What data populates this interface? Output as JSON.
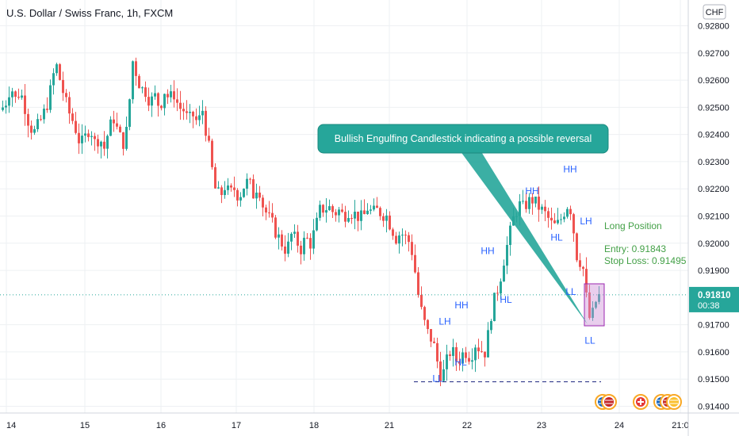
{
  "title": "U.S. Dollar / Swiss Franc, 1h, FXCM",
  "currency": "CHF",
  "callout": "Bullish Engulfing Candlestick indicating a possible reversal",
  "position": {
    "label": "Long Position",
    "entry_label": "Entry: 0.91843",
    "stop_label": "Stop Loss: 0.91495"
  },
  "price_tag": {
    "price": "0.91810",
    "countdown": "00:38"
  },
  "colors": {
    "up": "#26a69a",
    "down": "#ef5350",
    "accent": "#2962ff",
    "green": "#43a047",
    "callout": "#26a69a"
  },
  "chart_data": {
    "type": "candlestick",
    "y_unit": "CHF",
    "ylim": [
      0.914,
      0.928
    ],
    "y_ticks": [
      "0.92800",
      "0.92700",
      "0.92600",
      "0.92500",
      "0.92400",
      "0.92300",
      "0.92200",
      "0.92100",
      "0.92000",
      "0.91900",
      "0.91700",
      "0.91600",
      "0.91500",
      "0.91400"
    ],
    "x_ticks": [
      "14",
      "15",
      "16",
      "17",
      "18",
      "21",
      "22",
      "23",
      "24",
      "21:0"
    ],
    "current_price": 0.9181,
    "support_level": 0.9149,
    "close_path": [
      [
        0,
        0.9249
      ],
      [
        6,
        0.9252
      ],
      [
        12,
        0.9258
      ],
      [
        18,
        0.9253
      ],
      [
        24,
        0.9256
      ],
      [
        30,
        0.925
      ],
      [
        36,
        0.9243
      ],
      [
        42,
        0.9241
      ],
      [
        48,
        0.9244
      ],
      [
        54,
        0.9248
      ],
      [
        60,
        0.9253
      ],
      [
        66,
        0.9262
      ],
      [
        70,
        0.9265
      ],
      [
        76,
        0.9258
      ],
      [
        84,
        0.9249
      ],
      [
        92,
        0.9244
      ],
      [
        100,
        0.9236
      ],
      [
        106,
        0.9239
      ],
      [
        112,
        0.9243
      ],
      [
        118,
        0.9237
      ],
      [
        124,
        0.9239
      ],
      [
        130,
        0.9235
      ],
      [
        136,
        0.9242
      ],
      [
        142,
        0.9246
      ],
      [
        148,
        0.924
      ],
      [
        154,
        0.9237
      ],
      [
        160,
        0.9243
      ],
      [
        165,
        0.9268
      ],
      [
        170,
        0.9263
      ],
      [
        176,
        0.9257
      ],
      [
        182,
        0.9256
      ],
      [
        188,
        0.9252
      ],
      [
        194,
        0.9254
      ],
      [
        200,
        0.925
      ],
      [
        206,
        0.9256
      ],
      [
        212,
        0.9253
      ],
      [
        218,
        0.9255
      ],
      [
        224,
        0.925
      ],
      [
        230,
        0.9249
      ],
      [
        236,
        0.9245
      ],
      [
        242,
        0.9247
      ],
      [
        248,
        0.9244
      ],
      [
        254,
        0.9249
      ],
      [
        258,
        0.9242
      ],
      [
        262,
        0.9235
      ],
      [
        266,
        0.9227
      ],
      [
        270,
        0.922
      ],
      [
        276,
        0.9217
      ],
      [
        282,
        0.9221
      ],
      [
        288,
        0.9218
      ],
      [
        294,
        0.922
      ],
      [
        300,
        0.9217
      ],
      [
        306,
        0.9221
      ],
      [
        312,
        0.9223
      ],
      [
        318,
        0.9218
      ],
      [
        324,
        0.9222
      ],
      [
        330,
        0.9214
      ],
      [
        336,
        0.921
      ],
      [
        342,
        0.9207
      ],
      [
        348,
        0.9203
      ],
      [
        354,
        0.92
      ],
      [
        360,
        0.9197
      ],
      [
        366,
        0.9203
      ],
      [
        372,
        0.9201
      ],
      [
        378,
        0.9198
      ],
      [
        384,
        0.9202
      ],
      [
        390,
        0.92
      ],
      [
        396,
        0.9205
      ],
      [
        402,
        0.9212
      ],
      [
        408,
        0.9213
      ],
      [
        414,
        0.9213
      ],
      [
        420,
        0.9211
      ],
      [
        426,
        0.9212
      ],
      [
        432,
        0.921
      ],
      [
        438,
        0.9212
      ],
      [
        444,
        0.9211
      ],
      [
        450,
        0.921
      ],
      [
        456,
        0.9209
      ],
      [
        462,
        0.9213
      ],
      [
        468,
        0.9211
      ],
      [
        474,
        0.9212
      ],
      [
        480,
        0.9211
      ],
      [
        486,
        0.921
      ],
      [
        492,
        0.9206
      ],
      [
        498,
        0.9202
      ],
      [
        504,
        0.9204
      ],
      [
        510,
        0.9202
      ],
      [
        516,
        0.92
      ],
      [
        520,
        0.9194
      ],
      [
        524,
        0.9185
      ],
      [
        528,
        0.9177
      ],
      [
        532,
        0.9173
      ],
      [
        536,
        0.9168
      ],
      [
        540,
        0.9166
      ],
      [
        544,
        0.9164
      ],
      [
        548,
        0.916
      ],
      [
        552,
        0.9153
      ],
      [
        556,
        0.9151
      ],
      [
        560,
        0.9154
      ],
      [
        564,
        0.9159
      ],
      [
        568,
        0.9161
      ],
      [
        572,
        0.9158
      ],
      [
        576,
        0.9156
      ],
      [
        580,
        0.9159
      ],
      [
        586,
        0.916
      ],
      [
        592,
        0.9158
      ],
      [
        598,
        0.9163
      ],
      [
        604,
        0.9161
      ],
      [
        610,
        0.916
      ],
      [
        614,
        0.9166
      ],
      [
        618,
        0.9174
      ],
      [
        622,
        0.9179
      ],
      [
        626,
        0.9183
      ],
      [
        630,
        0.9188
      ],
      [
        634,
        0.9194
      ],
      [
        638,
        0.9199
      ],
      [
        642,
        0.9204
      ],
      [
        646,
        0.9209
      ],
      [
        650,
        0.9212
      ],
      [
        654,
        0.9214
      ],
      [
        658,
        0.9213
      ],
      [
        664,
        0.9215
      ],
      [
        670,
        0.9216
      ],
      [
        676,
        0.9214
      ],
      [
        682,
        0.9212
      ],
      [
        688,
        0.921
      ],
      [
        694,
        0.9207
      ],
      [
        700,
        0.9206
      ],
      [
        706,
        0.9209
      ],
      [
        712,
        0.9213
      ],
      [
        716,
        0.9215
      ],
      [
        720,
        0.921
      ],
      [
        724,
        0.9199
      ],
      [
        728,
        0.9192
      ],
      [
        732,
        0.9195
      ],
      [
        736,
        0.9186
      ],
      [
        740,
        0.9174
      ],
      [
        744,
        0.9171
      ],
      [
        748,
        0.9177
      ],
      [
        752,
        0.918
      ],
      [
        756,
        0.9181
      ]
    ],
    "swing_points": [
      {
        "label": "HH",
        "x": 582,
        "price": 0.9176
      },
      {
        "label": "LH",
        "x": 561,
        "price": 0.917
      },
      {
        "label": "LL",
        "x": 552,
        "price": 0.9149
      },
      {
        "label": "HL",
        "x": 581,
        "price": 0.9155
      },
      {
        "label": "HH",
        "x": 615,
        "price": 0.9196
      },
      {
        "label": "HL",
        "x": 638,
        "price": 0.9178
      },
      {
        "label": "HH",
        "x": 671,
        "price": 0.9218
      },
      {
        "label": "HH",
        "x": 719,
        "price": 0.9226
      },
      {
        "label": "HL",
        "x": 702,
        "price": 0.9201
      },
      {
        "label": "LH",
        "x": 739,
        "price": 0.9207
      },
      {
        "label": "LL",
        "x": 720,
        "price": 0.9181
      },
      {
        "label": "LL",
        "x": 744,
        "price": 0.9163
      }
    ]
  }
}
